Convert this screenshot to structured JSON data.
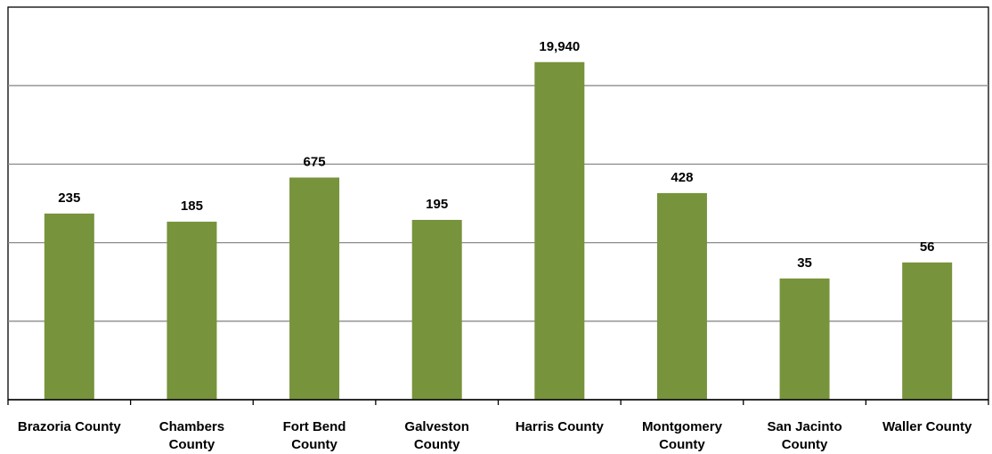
{
  "chart_data": {
    "type": "bar",
    "categories": [
      [
        "Brazoria County"
      ],
      [
        "Chambers",
        "County"
      ],
      [
        "Fort Bend",
        "County"
      ],
      [
        "Galveston",
        "County"
      ],
      [
        "Harris County"
      ],
      [
        "Montgomery",
        "County"
      ],
      [
        "San Jacinto",
        "County"
      ],
      [
        "Waller County"
      ]
    ],
    "values": [
      235,
      185,
      675,
      195,
      19940,
      428,
      35,
      56
    ],
    "value_labels": [
      "235",
      "185",
      "675",
      "195",
      "19,940",
      "428",
      "35",
      "56"
    ],
    "scale": "log",
    "ylim": [
      1,
      100000
    ],
    "gridlines": 4,
    "bar_color": "#77933c",
    "grid_color": "#8c8c8c",
    "axis_color": "#000000",
    "title": "",
    "xlabel": "",
    "ylabel": ""
  }
}
